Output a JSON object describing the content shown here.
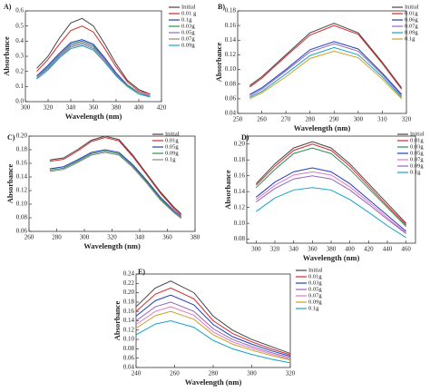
{
  "chart_data": [
    {
      "type": "line",
      "title": "A)",
      "x_label": "Wavelength (nm)",
      "y_label": "Absorbance",
      "x": [
        310,
        320,
        330,
        340,
        350,
        360,
        370,
        380,
        390,
        400,
        410
      ],
      "xlim": [
        300,
        420
      ],
      "xticks": [
        300,
        320,
        340,
        360,
        380,
        400,
        420
      ],
      "ylim": [
        0,
        0.6
      ],
      "yticks": [
        {
          "value": 0,
          "label": "0.0"
        },
        {
          "value": 0.1,
          "label": "0.1"
        },
        {
          "value": 0.2,
          "label": "0.2"
        },
        {
          "value": 0.3,
          "label": "0.3"
        },
        {
          "value": 0.4,
          "label": "0.4"
        },
        {
          "value": 0.5,
          "label": "0.5"
        },
        {
          "value": 0.6,
          "label": "0.6"
        }
      ],
      "series": [
        {
          "name": "Initial",
          "color": "#444444",
          "values": [
            0.22,
            0.3,
            0.42,
            0.52,
            0.55,
            0.5,
            0.38,
            0.25,
            0.14,
            0.08,
            0.05
          ]
        },
        {
          "name": "0.01 g",
          "color": "#d62728",
          "values": [
            0.2,
            0.28,
            0.38,
            0.47,
            0.5,
            0.46,
            0.35,
            0.23,
            0.13,
            0.07,
            0.05
          ]
        },
        {
          "name": "0.1g",
          "color": "#1f3fbf",
          "values": [
            0.17,
            0.24,
            0.32,
            0.39,
            0.41,
            0.38,
            0.29,
            0.19,
            0.11,
            0.06,
            0.04
          ]
        },
        {
          "name": "0.03g",
          "color": "#2e8b57",
          "values": [
            0.16,
            0.23,
            0.31,
            0.38,
            0.4,
            0.37,
            0.28,
            0.18,
            0.11,
            0.06,
            0.04
          ]
        },
        {
          "name": "0.05g",
          "color": "#9467bd",
          "values": [
            0.16,
            0.22,
            0.3,
            0.37,
            0.39,
            0.36,
            0.28,
            0.18,
            0.1,
            0.06,
            0.04
          ]
        },
        {
          "name": "0.07g",
          "color": "#888888",
          "values": [
            0.15,
            0.21,
            0.29,
            0.36,
            0.38,
            0.35,
            0.27,
            0.17,
            0.1,
            0.06,
            0.03
          ]
        },
        {
          "name": "0.09g",
          "color": "#17a2c8",
          "values": [
            0.15,
            0.21,
            0.29,
            0.35,
            0.37,
            0.34,
            0.26,
            0.17,
            0.1,
            0.05,
            0.03
          ]
        }
      ]
    },
    {
      "type": "line",
      "title": "B)",
      "x_label": "Wavelength (nm)",
      "y_label": "Absorbance",
      "x": [
        255,
        260,
        270,
        280,
        290,
        300,
        310,
        318
      ],
      "xlim": [
        250,
        320
      ],
      "xticks": [
        250,
        260,
        270,
        280,
        290,
        300,
        310,
        320
      ],
      "ylim": [
        0.04,
        0.18
      ],
      "yticks": [
        {
          "value": 0.04,
          "label": "0.04"
        },
        {
          "value": 0.06,
          "label": "0.06"
        },
        {
          "value": 0.08,
          "label": "0.08"
        },
        {
          "value": 0.1,
          "label": "0.10"
        },
        {
          "value": 0.12,
          "label": "0.12"
        },
        {
          "value": 0.14,
          "label": "0.14"
        },
        {
          "value": 0.16,
          "label": "0.16"
        },
        {
          "value": 0.18,
          "label": "0.18"
        }
      ],
      "series": [
        {
          "name": "Initial",
          "color": "#444444",
          "values": [
            0.078,
            0.09,
            0.12,
            0.15,
            0.163,
            0.15,
            0.11,
            0.075
          ]
        },
        {
          "name": "0.01g",
          "color": "#d62728",
          "values": [
            0.076,
            0.088,
            0.118,
            0.147,
            0.16,
            0.148,
            0.108,
            0.073
          ]
        },
        {
          "name": "0.06g",
          "color": "#1f3fbf",
          "values": [
            0.066,
            0.075,
            0.1,
            0.127,
            0.138,
            0.128,
            0.095,
            0.066
          ]
        },
        {
          "name": "0.07g",
          "color": "#9467bd",
          "values": [
            0.064,
            0.073,
            0.098,
            0.124,
            0.135,
            0.125,
            0.093,
            0.064
          ]
        },
        {
          "name": "0.09g",
          "color": "#17a2c8",
          "values": [
            0.062,
            0.07,
            0.094,
            0.119,
            0.13,
            0.12,
            0.09,
            0.062
          ]
        },
        {
          "name": "0.1g",
          "color": "#c9a227",
          "values": [
            0.06,
            0.068,
            0.09,
            0.115,
            0.125,
            0.116,
            0.087,
            0.06
          ]
        }
      ]
    },
    {
      "type": "line",
      "title": "C)",
      "x_label": "Wavelength (nm)",
      "y_label": "Absorbance",
      "x": [
        275,
        285,
        295,
        305,
        315,
        325,
        335,
        345,
        355,
        365,
        370
      ],
      "xlim": [
        260,
        380
      ],
      "xticks": [
        260,
        280,
        300,
        320,
        340,
        360,
        380
      ],
      "ylim": [
        0.06,
        0.2
      ],
      "yticks": [
        {
          "value": 0.06,
          "label": "0.06"
        },
        {
          "value": 0.08,
          "label": "0.08"
        },
        {
          "value": 0.1,
          "label": "0.10"
        },
        {
          "value": 0.12,
          "label": "0.12"
        },
        {
          "value": 0.14,
          "label": "0.14"
        },
        {
          "value": 0.16,
          "label": "0.16"
        },
        {
          "value": 0.18,
          "label": "0.18"
        },
        {
          "value": 0.2,
          "label": "0.20"
        }
      ],
      "series": [
        {
          "name": "Initial",
          "color": "#444444",
          "values": [
            0.165,
            0.168,
            0.18,
            0.194,
            0.2,
            0.195,
            0.172,
            0.145,
            0.118,
            0.095,
            0.086
          ]
        },
        {
          "name": "0.01g",
          "color": "#d62728",
          "values": [
            0.163,
            0.166,
            0.178,
            0.192,
            0.198,
            0.193,
            0.17,
            0.143,
            0.116,
            0.093,
            0.084
          ]
        },
        {
          "name": "0.05g",
          "color": "#1f3fbf",
          "values": [
            0.152,
            0.155,
            0.165,
            0.176,
            0.18,
            0.176,
            0.158,
            0.135,
            0.11,
            0.09,
            0.082
          ]
        },
        {
          "name": "0.09g",
          "color": "#2e8b57",
          "values": [
            0.15,
            0.153,
            0.163,
            0.174,
            0.178,
            0.174,
            0.156,
            0.133,
            0.108,
            0.088,
            0.08
          ]
        },
        {
          "name": "0.1g",
          "color": "#888888",
          "values": [
            0.148,
            0.151,
            0.161,
            0.172,
            0.176,
            0.172,
            0.154,
            0.131,
            0.106,
            0.087,
            0.079
          ]
        }
      ]
    },
    {
      "type": "line",
      "title": "D)",
      "x_label": "Wavelength (nm)",
      "y_label": "Absorbance",
      "x": [
        300,
        320,
        340,
        360,
        380,
        400,
        420,
        440,
        460
      ],
      "xlim": [
        290,
        470
      ],
      "xticks": [
        300,
        320,
        340,
        360,
        380,
        400,
        420,
        440,
        460
      ],
      "ylim": [
        0.075,
        0.21
      ],
      "yticks": [
        {
          "value": 0.08,
          "label": "0.08"
        },
        {
          "value": 0.1,
          "label": "0.10"
        },
        {
          "value": 0.12,
          "label": "0.12"
        },
        {
          "value": 0.14,
          "label": "0.14"
        },
        {
          "value": 0.16,
          "label": "0.16"
        },
        {
          "value": 0.18,
          "label": "0.18"
        },
        {
          "value": 0.2,
          "label": "0.20"
        }
      ],
      "series": [
        {
          "name": "Initial",
          "color": "#444444",
          "values": [
            0.15,
            0.175,
            0.195,
            0.203,
            0.195,
            0.175,
            0.15,
            0.125,
            0.1
          ]
        },
        {
          "name": "0.01g",
          "color": "#d62728",
          "values": [
            0.148,
            0.172,
            0.192,
            0.2,
            0.192,
            0.172,
            0.147,
            0.122,
            0.098
          ]
        },
        {
          "name": "0.03g",
          "color": "#2e8b57",
          "values": [
            0.145,
            0.168,
            0.188,
            0.195,
            0.188,
            0.168,
            0.144,
            0.12,
            0.096
          ]
        },
        {
          "name": "0.05g",
          "color": "#1f3fbf",
          "values": [
            0.133,
            0.152,
            0.165,
            0.17,
            0.165,
            0.15,
            0.13,
            0.11,
            0.09
          ]
        },
        {
          "name": "0.07g",
          "color": "#e377c2",
          "values": [
            0.13,
            0.148,
            0.161,
            0.165,
            0.161,
            0.146,
            0.127,
            0.107,
            0.088
          ]
        },
        {
          "name": "0.09g",
          "color": "#9467bd",
          "values": [
            0.127,
            0.144,
            0.156,
            0.16,
            0.156,
            0.142,
            0.124,
            0.105,
            0.087
          ]
        },
        {
          "name": "0.1g",
          "color": "#17a2c8",
          "values": [
            0.115,
            0.132,
            0.142,
            0.145,
            0.142,
            0.13,
            0.114,
            0.097,
            0.082
          ]
        }
      ]
    },
    {
      "type": "line",
      "title": "E)",
      "x_label": "Wavelength (nm)",
      "y_label": "Absorbance",
      "x": [
        240,
        250,
        258,
        270,
        280,
        290,
        300,
        310,
        320
      ],
      "xlim": [
        240,
        320
      ],
      "xticks": [
        240,
        260,
        280,
        300,
        320
      ],
      "ylim": [
        0.04,
        0.24
      ],
      "yticks": [
        {
          "value": 0.04,
          "label": "0.04"
        },
        {
          "value": 0.06,
          "label": "0.06"
        },
        {
          "value": 0.08,
          "label": "0.08"
        },
        {
          "value": 0.1,
          "label": "0.10"
        },
        {
          "value": 0.12,
          "label": "0.12"
        },
        {
          "value": 0.14,
          "label": "0.14"
        },
        {
          "value": 0.16,
          "label": "0.16"
        },
        {
          "value": 0.18,
          "label": "0.18"
        },
        {
          "value": 0.2,
          "label": "0.20"
        },
        {
          "value": 0.22,
          "label": "0.22"
        },
        {
          "value": 0.24,
          "label": "0.24"
        }
      ],
      "series": [
        {
          "name": "Initial",
          "color": "#444444",
          "values": [
            0.17,
            0.21,
            0.225,
            0.2,
            0.15,
            0.12,
            0.1,
            0.085,
            0.07
          ]
        },
        {
          "name": "0.01g",
          "color": "#d62728",
          "values": [
            0.16,
            0.197,
            0.21,
            0.187,
            0.14,
            0.113,
            0.095,
            0.08,
            0.067
          ]
        },
        {
          "name": "0.03g",
          "color": "#1f3fbf",
          "values": [
            0.15,
            0.183,
            0.195,
            0.174,
            0.132,
            0.106,
            0.09,
            0.076,
            0.064
          ]
        },
        {
          "name": "0.05g",
          "color": "#9467bd",
          "values": [
            0.14,
            0.17,
            0.18,
            0.16,
            0.123,
            0.1,
            0.085,
            0.072,
            0.061
          ]
        },
        {
          "name": "0.07g",
          "color": "#e377c2",
          "values": [
            0.132,
            0.16,
            0.17,
            0.152,
            0.116,
            0.095,
            0.081,
            0.069,
            0.058
          ]
        },
        {
          "name": "0.09g",
          "color": "#c9a227",
          "values": [
            0.124,
            0.151,
            0.16,
            0.143,
            0.11,
            0.09,
            0.077,
            0.066,
            0.056
          ]
        },
        {
          "name": "0.1g",
          "color": "#17a2c8",
          "values": [
            0.11,
            0.133,
            0.14,
            0.126,
            0.098,
            0.08,
            0.068,
            0.058,
            0.05
          ]
        }
      ]
    }
  ]
}
